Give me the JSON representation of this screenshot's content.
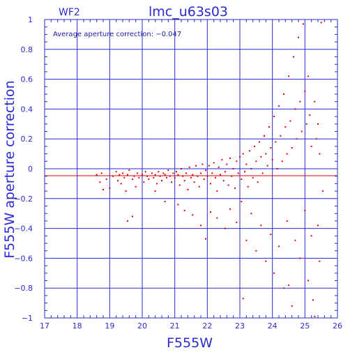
{
  "chart_data": {
    "type": "scatter",
    "title": "lmc_u63s03",
    "panel_label": "WF2",
    "annotation": "Average aperture correction: −0.047",
    "xlabel": "F555W",
    "ylabel": "F555W aperture correction",
    "xlim": [
      17,
      26
    ],
    "ylim": [
      -1,
      1
    ],
    "x_ticks": [
      17,
      18,
      19,
      20,
      21,
      22,
      23,
      24,
      25,
      26
    ],
    "y_ticks": [
      -1,
      -0.8,
      -0.6,
      -0.4,
      -0.2,
      0,
      0.2,
      0.4,
      0.6,
      0.8,
      1
    ],
    "x_tick_labels": [
      "17",
      "18",
      "19",
      "20",
      "21",
      "22",
      "23",
      "24",
      "25",
      "26"
    ],
    "y_tick_labels": [
      "−1",
      "−0.8",
      "−0.6",
      "−0.4",
      "−0.2",
      "0",
      "0.2",
      "0.4",
      "0.6",
      "0.8",
      "1"
    ],
    "grid": true,
    "average_line": -0.047,
    "colors": {
      "axes": "#2a2ad0",
      "points": "#e00000",
      "average_line": "#e00000"
    },
    "series": [
      {
        "values_xy": [
          [
            18.6,
            -0.04
          ],
          [
            18.7,
            -0.09
          ],
          [
            18.75,
            -0.03
          ],
          [
            18.8,
            -0.14
          ],
          [
            18.9,
            -0.07
          ],
          [
            19.0,
            -0.13
          ],
          [
            19.1,
            -0.05
          ],
          [
            19.2,
            -0.02
          ],
          [
            19.25,
            -0.08
          ],
          [
            19.3,
            -0.04
          ],
          [
            19.35,
            -0.1
          ],
          [
            19.4,
            -0.03
          ],
          [
            19.45,
            -0.06
          ],
          [
            19.5,
            -0.15
          ],
          [
            19.55,
            -0.04
          ],
          [
            19.6,
            -0.01
          ],
          [
            19.7,
            -0.07
          ],
          [
            19.75,
            -0.05
          ],
          [
            19.8,
            -0.12
          ],
          [
            19.85,
            -0.03
          ],
          [
            19.9,
            -0.06
          ],
          [
            20.0,
            -0.04
          ],
          [
            20.05,
            -0.09
          ],
          [
            20.1,
            -0.02
          ],
          [
            20.15,
            -0.05
          ],
          [
            20.2,
            -0.07
          ],
          [
            20.3,
            -0.03
          ],
          [
            20.35,
            -0.06
          ],
          [
            20.4,
            -0.04
          ],
          [
            20.45,
            -0.1
          ],
          [
            20.5,
            -0.02
          ],
          [
            20.55,
            -0.05
          ],
          [
            20.6,
            -0.08
          ],
          [
            20.65,
            -0.03
          ],
          [
            20.7,
            -0.04
          ],
          [
            20.75,
            -0.06
          ],
          [
            20.8,
            -0.01
          ],
          [
            20.85,
            -0.05
          ],
          [
            20.9,
            -0.09
          ],
          [
            20.95,
            -0.03
          ],
          [
            21.0,
            -0.06
          ],
          [
            21.05,
            -0.02
          ],
          [
            21.1,
            -0.04
          ],
          [
            21.15,
            -0.11
          ],
          [
            21.2,
            0.0
          ],
          [
            21.25,
            -0.05
          ],
          [
            21.3,
            -0.08
          ],
          [
            21.35,
            -0.03
          ],
          [
            21.4,
            -0.14
          ],
          [
            21.45,
            0.01
          ],
          [
            21.5,
            -0.06
          ],
          [
            21.55,
            -0.04
          ],
          [
            21.6,
            -0.09
          ],
          [
            21.65,
            0.02
          ],
          [
            21.7,
            -0.05
          ],
          [
            21.75,
            -0.12
          ],
          [
            21.8,
            -0.03
          ],
          [
            21.85,
            0.03
          ],
          [
            21.9,
            -0.07
          ],
          [
            21.95,
            -0.01
          ],
          [
            22.0,
            -0.05
          ],
          [
            22.05,
            0.02
          ],
          [
            22.1,
            -0.1
          ],
          [
            22.15,
            -0.03
          ],
          [
            22.2,
            0.04
          ],
          [
            22.25,
            -0.06
          ],
          [
            22.3,
            -0.15
          ],
          [
            22.35,
            0.01
          ],
          [
            22.4,
            -0.04
          ],
          [
            22.45,
            0.06
          ],
          [
            22.5,
            -0.08
          ],
          [
            22.55,
            -0.02
          ],
          [
            22.6,
            0.03
          ],
          [
            22.65,
            -0.11
          ],
          [
            22.7,
            0.07
          ],
          [
            22.75,
            -0.05
          ],
          [
            22.8,
            0.0
          ],
          [
            22.85,
            -0.13
          ],
          [
            22.9,
            0.05
          ],
          [
            22.95,
            -0.03
          ],
          [
            23.0,
            0.08
          ],
          [
            23.05,
            -0.07
          ],
          [
            23.1,
            0.1
          ],
          [
            23.15,
            -0.02
          ],
          [
            23.2,
            0.03
          ],
          [
            23.25,
            -0.12
          ],
          [
            23.3,
            0.12
          ],
          [
            23.35,
            0.0
          ],
          [
            23.4,
            -0.06
          ],
          [
            23.45,
            0.15
          ],
          [
            23.5,
            0.05
          ],
          [
            23.55,
            -0.09
          ],
          [
            23.6,
            0.18
          ],
          [
            23.65,
            0.08
          ],
          [
            23.7,
            -0.03
          ],
          [
            23.75,
            0.22
          ],
          [
            23.8,
            0.1
          ],
          [
            23.85,
            0.02
          ],
          [
            23.9,
            0.28
          ],
          [
            23.95,
            0.14
          ],
          [
            24.0,
            0.06
          ],
          [
            24.05,
            0.35
          ],
          [
            24.1,
            0.18
          ],
          [
            24.15,
            0.0
          ],
          [
            24.2,
            0.42
          ],
          [
            24.25,
            0.22
          ],
          [
            24.3,
            0.05
          ],
          [
            24.35,
            0.5
          ],
          [
            24.4,
            0.28
          ],
          [
            24.45,
            0.1
          ],
          [
            24.5,
            0.62
          ],
          [
            24.55,
            0.32
          ],
          [
            24.6,
            0.14
          ],
          [
            24.65,
            0.75
          ],
          [
            24.7,
            0.4
          ],
          [
            24.75,
            0.2
          ],
          [
            24.8,
            0.88
          ],
          [
            24.85,
            0.45
          ],
          [
            24.9,
            0.25
          ],
          [
            24.95,
            0.97
          ],
          [
            25.0,
            0.52
          ],
          [
            25.05,
            0.3
          ],
          [
            25.1,
            0.62
          ],
          [
            25.15,
            0.36
          ],
          [
            25.2,
            0.15
          ],
          [
            25.3,
            0.45
          ],
          [
            25.35,
            0.2
          ],
          [
            25.4,
            0.3
          ],
          [
            25.45,
            0.1
          ],
          [
            25.5,
            0.98
          ],
          [
            19.55,
            -0.35
          ],
          [
            19.7,
            -0.32
          ],
          [
            20.4,
            -0.15
          ],
          [
            20.7,
            -0.22
          ],
          [
            21.1,
            -0.24
          ],
          [
            21.3,
            -0.28
          ],
          [
            21.55,
            -0.31
          ],
          [
            21.8,
            -0.38
          ],
          [
            21.95,
            -0.47
          ],
          [
            22.1,
            -0.29
          ],
          [
            22.3,
            -0.33
          ],
          [
            22.55,
            -0.4
          ],
          [
            22.7,
            -0.27
          ],
          [
            22.9,
            -0.36
          ],
          [
            23.05,
            -0.22
          ],
          [
            23.2,
            -0.48
          ],
          [
            23.35,
            -0.3
          ],
          [
            23.5,
            -0.55
          ],
          [
            23.65,
            -0.38
          ],
          [
            23.8,
            -0.62
          ],
          [
            23.95,
            -0.44
          ],
          [
            24.05,
            -0.7
          ],
          [
            24.2,
            -0.52
          ],
          [
            24.35,
            -0.8
          ],
          [
            24.45,
            -0.35
          ],
          [
            24.6,
            -0.92
          ],
          [
            24.7,
            -0.48
          ],
          [
            24.85,
            -0.6
          ],
          [
            25.0,
            -0.28
          ],
          [
            25.1,
            -0.75
          ],
          [
            25.2,
            -0.45
          ],
          [
            25.25,
            -0.88
          ],
          [
            25.4,
            -0.38
          ],
          [
            25.45,
            -0.62
          ],
          [
            25.55,
            -0.15
          ],
          [
            23.1,
            -0.87
          ],
          [
            25.3,
            -0.99
          ],
          [
            24.5,
            -0.78
          ]
        ]
      }
    ]
  }
}
